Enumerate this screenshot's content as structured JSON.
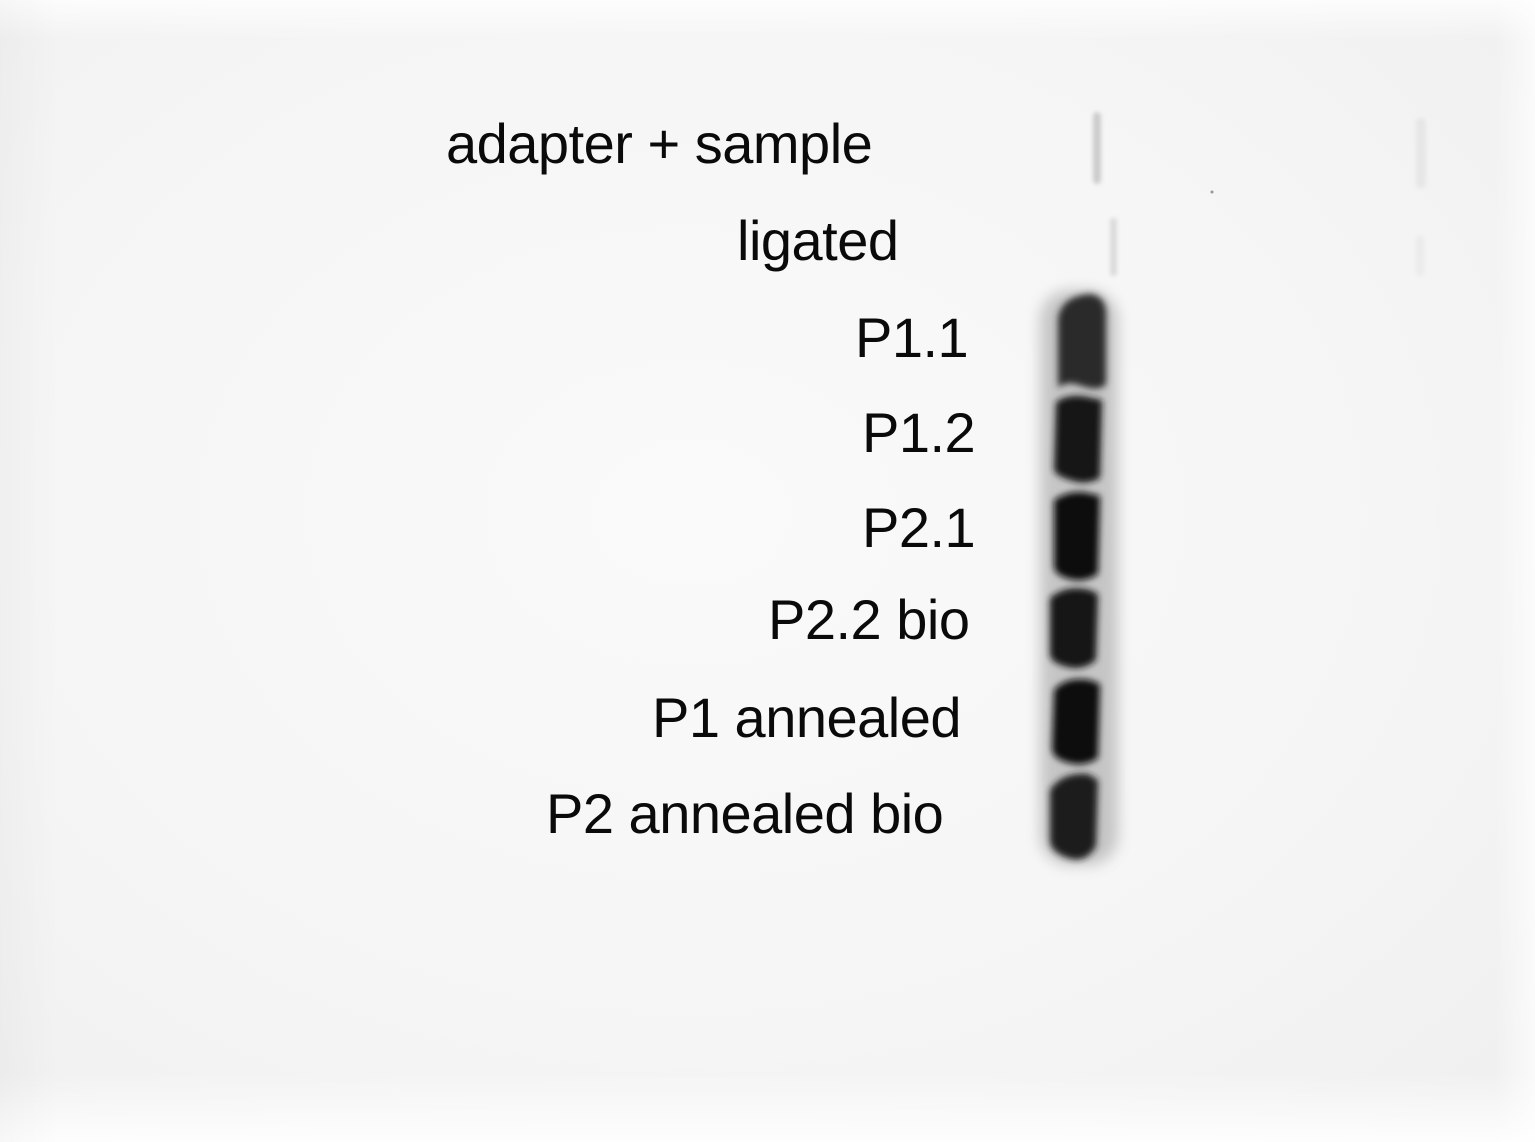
{
  "gel": {
    "lanes": [
      {
        "label": "adapter + sample",
        "intensity": 0.12
      },
      {
        "label": "ligated",
        "intensity": 0.1
      },
      {
        "label": "P1.1",
        "intensity": 0.85
      },
      {
        "label": "P1.2",
        "intensity": 0.9
      },
      {
        "label": "P2.1",
        "intensity": 0.92
      },
      {
        "label": "P2.2 bio",
        "intensity": 0.9
      },
      {
        "label": "P1 annealed",
        "intensity": 0.92
      },
      {
        "label": "P2 annealed bio",
        "intensity": 0.85
      }
    ]
  },
  "colors": {
    "background": "#f6f6f6",
    "band": "#111111",
    "text": "#0a0a0a"
  }
}
